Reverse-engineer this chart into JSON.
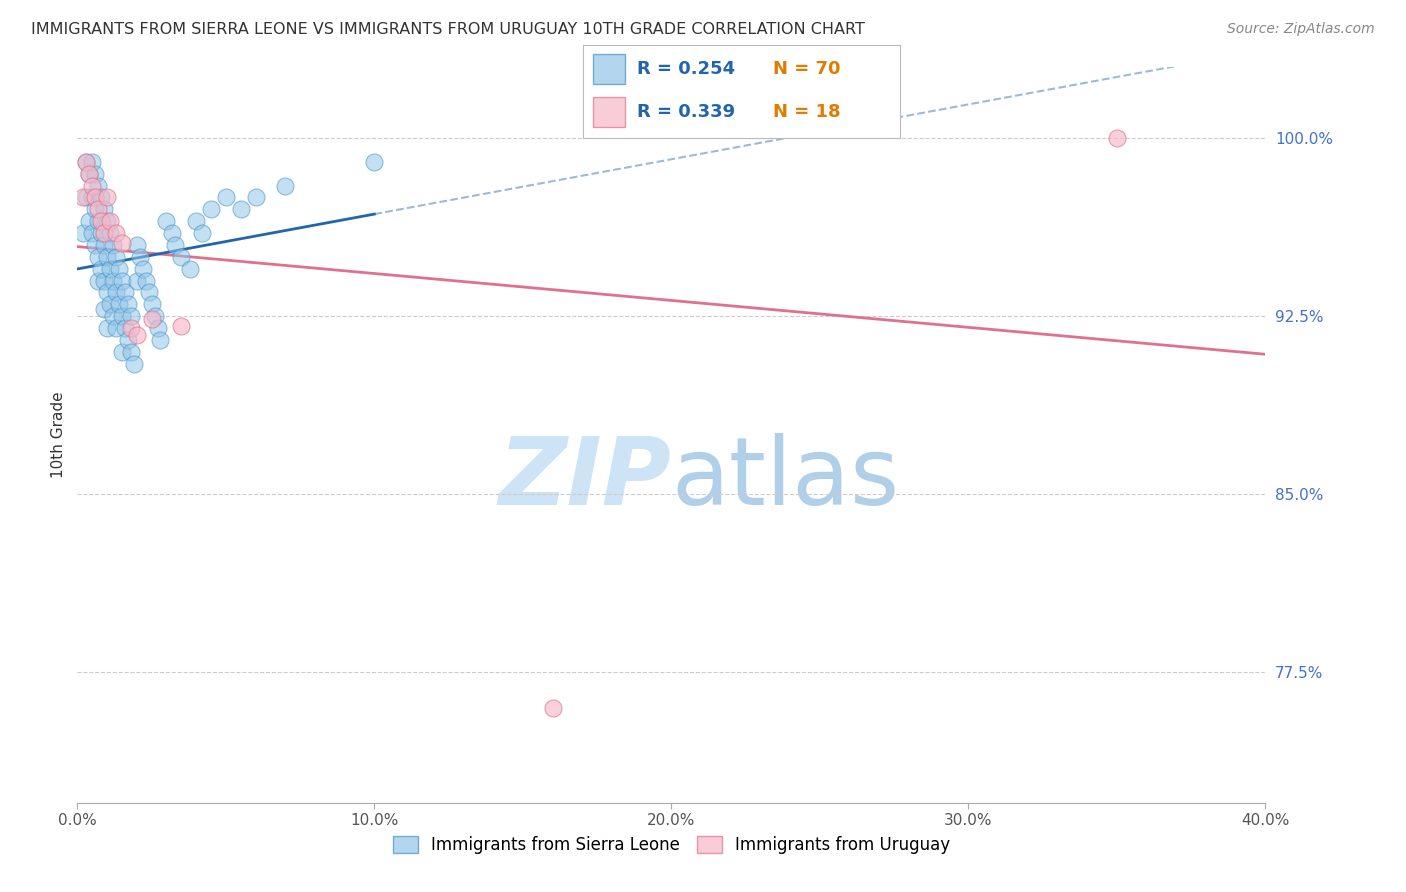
{
  "title": "IMMIGRANTS FROM SIERRA LEONE VS IMMIGRANTS FROM URUGUAY 10TH GRADE CORRELATION CHART",
  "source": "Source: ZipAtlas.com",
  "ylabel": "10th Grade",
  "xlim": [
    0.0,
    0.4
  ],
  "ylim": [
    0.72,
    1.03
  ],
  "xticks": [
    0.0,
    0.1,
    0.2,
    0.3,
    0.4
  ],
  "xticklabels": [
    "0.0%",
    "10.0%",
    "20.0%",
    "30.0%",
    "40.0%"
  ],
  "yticks": [
    0.775,
    0.85,
    0.925,
    1.0
  ],
  "yticklabels": [
    "77.5%",
    "85.0%",
    "92.5%",
    "100.0%"
  ],
  "sierra_leone_color": "#93c5e8",
  "sierra_leone_edge": "#4292c6",
  "uruguay_color": "#f7b8c8",
  "uruguay_edge": "#e0708a",
  "trend_sierra_color": "#2166ac",
  "trend_uruguay_color": "#e07090",
  "legend_r1": "R = 0.254",
  "legend_n1": "N = 70",
  "legend_r2": "R = 0.339",
  "legend_n2": "N = 18",
  "legend_label1": "Immigrants from Sierra Leone",
  "legend_label2": "Immigrants from Uruguay",
  "ytick_color": "#4472c4",
  "title_color": "#333333",
  "source_color": "#888888",
  "sl_x": [
    0.002,
    0.003,
    0.003,
    0.004,
    0.004,
    0.005,
    0.005,
    0.005,
    0.006,
    0.006,
    0.006,
    0.007,
    0.007,
    0.007,
    0.007,
    0.008,
    0.008,
    0.008,
    0.009,
    0.009,
    0.009,
    0.009,
    0.01,
    0.01,
    0.01,
    0.01,
    0.011,
    0.011,
    0.011,
    0.012,
    0.012,
    0.012,
    0.013,
    0.013,
    0.013,
    0.014,
    0.014,
    0.015,
    0.015,
    0.015,
    0.016,
    0.016,
    0.017,
    0.017,
    0.018,
    0.018,
    0.019,
    0.02,
    0.02,
    0.021,
    0.022,
    0.023,
    0.024,
    0.025,
    0.026,
    0.027,
    0.028,
    0.03,
    0.032,
    0.033,
    0.035,
    0.038,
    0.04,
    0.042,
    0.045,
    0.05,
    0.055,
    0.06,
    0.07,
    0.1
  ],
  "sl_y": [
    0.96,
    0.99,
    0.975,
    0.985,
    0.965,
    0.99,
    0.975,
    0.96,
    0.985,
    0.97,
    0.955,
    0.98,
    0.965,
    0.95,
    0.94,
    0.975,
    0.96,
    0.945,
    0.97,
    0.955,
    0.94,
    0.928,
    0.965,
    0.95,
    0.935,
    0.92,
    0.96,
    0.945,
    0.93,
    0.955,
    0.94,
    0.925,
    0.95,
    0.935,
    0.92,
    0.945,
    0.93,
    0.94,
    0.925,
    0.91,
    0.935,
    0.92,
    0.93,
    0.915,
    0.925,
    0.91,
    0.905,
    0.955,
    0.94,
    0.95,
    0.945,
    0.94,
    0.935,
    0.93,
    0.925,
    0.92,
    0.915,
    0.965,
    0.96,
    0.955,
    0.95,
    0.945,
    0.965,
    0.96,
    0.97,
    0.975,
    0.97,
    0.975,
    0.98,
    0.99
  ],
  "uy_x": [
    0.002,
    0.003,
    0.004,
    0.005,
    0.006,
    0.007,
    0.008,
    0.009,
    0.01,
    0.011,
    0.013,
    0.015,
    0.018,
    0.02,
    0.025,
    0.035,
    0.16,
    0.35
  ],
  "uy_y": [
    0.975,
    0.99,
    0.985,
    0.98,
    0.975,
    0.97,
    0.965,
    0.96,
    0.975,
    0.965,
    0.96,
    0.956,
    0.92,
    0.917,
    0.924,
    0.921,
    0.76,
    1.0
  ]
}
